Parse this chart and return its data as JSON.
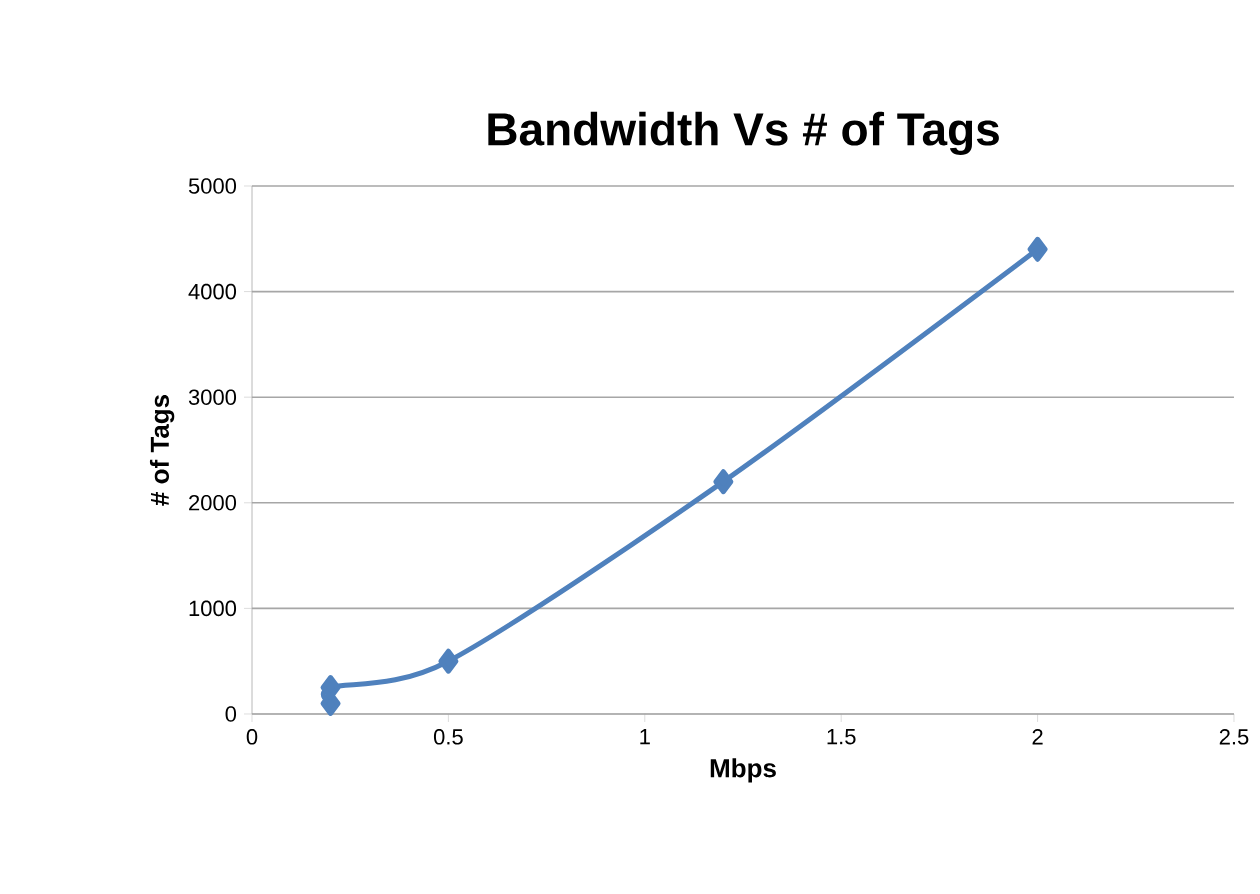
{
  "chart_data": {
    "type": "line",
    "title": "Bandwidth Vs # of Tags",
    "xlabel": "Mbps",
    "ylabel": "# of Tags",
    "x": [
      0.2,
      0.2,
      0.5,
      1.2,
      2
    ],
    "series": [
      {
        "color": "#4f81bd",
        "values": [
          100,
          250,
          500,
          2200,
          4400
        ]
      }
    ],
    "xlim": [
      0,
      2.5
    ],
    "xticks": [
      0,
      0.5,
      1,
      1.5,
      2,
      2.5
    ],
    "ylim": [
      0,
      5000
    ],
    "yticks": [
      0,
      1000,
      2000,
      3000,
      4000,
      5000
    ],
    "grid": "y",
    "marker": "diamond",
    "line_style": "solid"
  }
}
